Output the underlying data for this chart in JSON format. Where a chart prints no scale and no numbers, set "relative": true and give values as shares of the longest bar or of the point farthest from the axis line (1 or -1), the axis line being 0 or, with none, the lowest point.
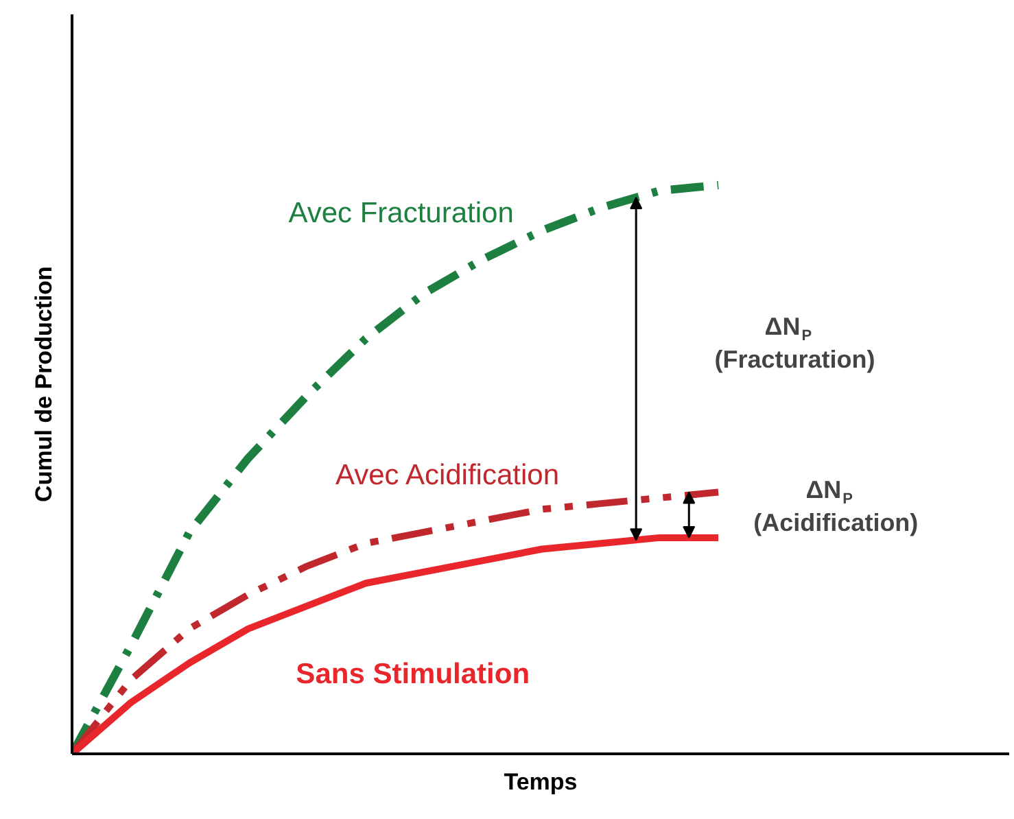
{
  "chart_data": {
    "type": "line",
    "relative": true,
    "xlabel": "Temps",
    "ylabel": "Cumul de Production",
    "categories": [
      null,
      null,
      null,
      null,
      null,
      null,
      null,
      null,
      null,
      null,
      null,
      null
    ],
    "series": [
      {
        "name": "Avec Fracturation",
        "color": "#1e8040",
        "line_style": "dashdot",
        "values": [
          0,
          0.19,
          0.39,
          0.52,
          0.63,
          0.73,
          0.81,
          0.87,
          0.92,
          0.96,
          0.99,
          1.0
        ]
      },
      {
        "name": "Avec Acidification",
        "color": "#c0282d",
        "line_style": "dashdotdot",
        "values": [
          0,
          0.13,
          0.22,
          0.28,
          0.33,
          0.37,
          0.39,
          0.41,
          0.43,
          0.44,
          0.45,
          0.46
        ]
      },
      {
        "name": "Sans Stimulation",
        "color": "#e8262b",
        "line_style": "solid",
        "values": [
          0,
          0.09,
          0.16,
          0.22,
          0.26,
          0.3,
          0.32,
          0.34,
          0.36,
          0.37,
          0.38,
          0.38
        ]
      }
    ],
    "annotations": [
      "ΔN$_{P}$ (Fracturation)",
      "ΔN$_{P}$ (Acidification)"
    ],
    "legend": false,
    "grid": false
  }
}
